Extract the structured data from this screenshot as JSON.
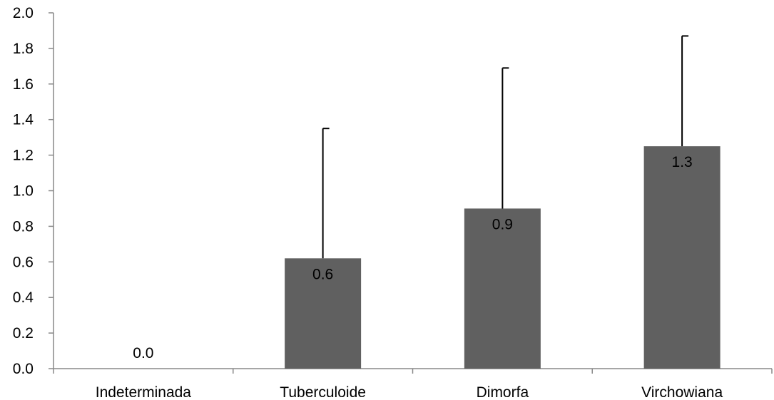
{
  "chart_data": {
    "type": "bar",
    "categories": [
      "Indeterminada",
      "Tuberculoide",
      "Dimorfa",
      "Virchowiana"
    ],
    "values": [
      0.0,
      0.62,
      0.9,
      1.25
    ],
    "error_upper": [
      0.0,
      1.35,
      1.69,
      1.87
    ],
    "data_labels": [
      "0.0",
      "0.6",
      "0.9",
      "1.3"
    ],
    "y_ticks": [
      "0.0",
      "0.2",
      "0.4",
      "0.6",
      "0.8",
      "1.0",
      "1.2",
      "1.4",
      "1.6",
      "1.8",
      "2.0"
    ],
    "ylim": [
      0,
      2.0
    ],
    "title": "",
    "xlabel": "",
    "ylabel": "",
    "grid": false,
    "bar_color": "#606060"
  }
}
